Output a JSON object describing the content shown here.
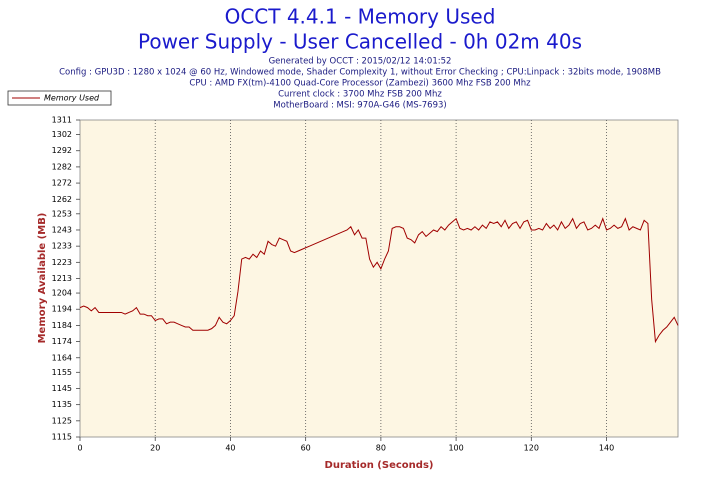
{
  "chart_data": {
    "type": "line",
    "title": "OCCT 4.4.1 - Memory Used",
    "subtitle": "Power Supply - User Cancelled - 0h 02m 40s",
    "info": [
      "Generated by OCCT : 2015/02/12 14:01:52",
      "Config : GPU3D : 1280 x 1024 @ 60 Hz, Windowed mode, Shader Complexity 1, without Error Checking ; CPU:Linpack : 32bits mode, 1908MB",
      "CPU : AMD FX(tm)-4100 Quad-Core Processor (Zambezi) 3600 Mhz FSB 200 Mhz",
      "Current clock : 3700 Mhz FSB 200 Mhz",
      "MotherBoard : MSI: 970A-G46 (MS-7693)"
    ],
    "x_label": "Duration (Seconds)",
    "y_label": "Memory Available (MB)",
    "x": [
      0,
      1,
      2,
      3,
      4,
      5,
      6,
      7,
      8,
      9,
      10,
      11,
      12,
      13,
      14,
      15,
      16,
      17,
      18,
      19,
      20,
      21,
      22,
      23,
      24,
      25,
      26,
      27,
      28,
      29,
      30,
      31,
      32,
      33,
      34,
      35,
      36,
      37,
      38,
      39,
      40,
      41,
      42,
      43,
      44,
      45,
      46,
      47,
      48,
      49,
      50,
      51,
      52,
      53,
      54,
      55,
      56,
      57,
      58,
      59,
      60,
      61,
      62,
      63,
      64,
      65,
      66,
      67,
      68,
      69,
      70,
      71,
      72,
      73,
      74,
      75,
      76,
      77,
      78,
      79,
      80,
      81,
      82,
      83,
      84,
      85,
      86,
      87,
      88,
      89,
      90,
      91,
      92,
      93,
      94,
      95,
      96,
      97,
      98,
      99,
      100,
      101,
      102,
      103,
      104,
      105,
      106,
      107,
      108,
      109,
      110,
      111,
      112,
      113,
      114,
      115,
      116,
      117,
      118,
      119,
      120,
      121,
      122,
      123,
      124,
      125,
      126,
      127,
      128,
      129,
      130,
      131,
      132,
      133,
      134,
      135,
      136,
      137,
      138,
      139,
      140,
      141,
      142,
      143,
      144,
      145,
      146,
      147,
      148,
      149,
      150,
      151,
      152,
      153,
      154,
      155,
      156,
      157,
      158,
      159
    ],
    "series": [
      {
        "name": "Memory Used",
        "color": "#a00000",
        "values": [
          1195,
          1196,
          1195,
          1193,
          1195,
          1192,
          1192,
          1192,
          1192,
          1192,
          1192,
          1192,
          1191,
          1192,
          1193,
          1195,
          1191,
          1191,
          1190,
          1190,
          1187,
          1188,
          1188,
          1185,
          1186,
          1186,
          1185,
          1184,
          1183,
          1183,
          1181,
          1181,
          1181,
          1181,
          1181,
          1182,
          1184,
          1189,
          1186,
          1185,
          1187,
          1190,
          1205,
          1225,
          1226,
          1225,
          1228,
          1226,
          1230,
          1228,
          1236,
          1234,
          1233,
          1238,
          1237,
          1236,
          1230,
          1229,
          1230,
          1231,
          1232,
          1233,
          1234,
          1235,
          1236,
          1237,
          1238,
          1239,
          1240,
          1241,
          1242,
          1243,
          1245,
          1240,
          1243,
          1238,
          1238,
          1225,
          1220,
          1223,
          1219,
          1225,
          1230,
          1244,
          1245,
          1245,
          1244,
          1238,
          1237,
          1235,
          1240,
          1242,
          1239,
          1241,
          1243,
          1242,
          1245,
          1243,
          1246,
          1248,
          1250,
          1244,
          1243,
          1244,
          1243,
          1245,
          1243,
          1246,
          1244,
          1248,
          1247,
          1248,
          1245,
          1249,
          1244,
          1247,
          1248,
          1244,
          1248,
          1249,
          1243,
          1243,
          1244,
          1243,
          1247,
          1244,
          1246,
          1243,
          1248,
          1244,
          1246,
          1250,
          1244,
          1247,
          1248,
          1243,
          1244,
          1246,
          1244,
          1250,
          1243,
          1244,
          1246,
          1244,
          1245,
          1250,
          1243,
          1245,
          1244,
          1243,
          1249,
          1247,
          1200,
          1174,
          1178,
          1181,
          1183,
          1186,
          1189,
          1184
        ]
      }
    ],
    "xlim": [
      0,
      159
    ],
    "xticks": [
      0,
      20,
      40,
      60,
      80,
      100,
      120,
      140
    ],
    "ylim": [
      1115,
      1311
    ],
    "yticks": [
      1115,
      1125,
      1135,
      1145,
      1155,
      1164,
      1174,
      1184,
      1194,
      1204,
      1213,
      1223,
      1233,
      1243,
      1253,
      1262,
      1272,
      1282,
      1292,
      1302,
      1311
    ],
    "grid": true,
    "legend": "top-left"
  }
}
